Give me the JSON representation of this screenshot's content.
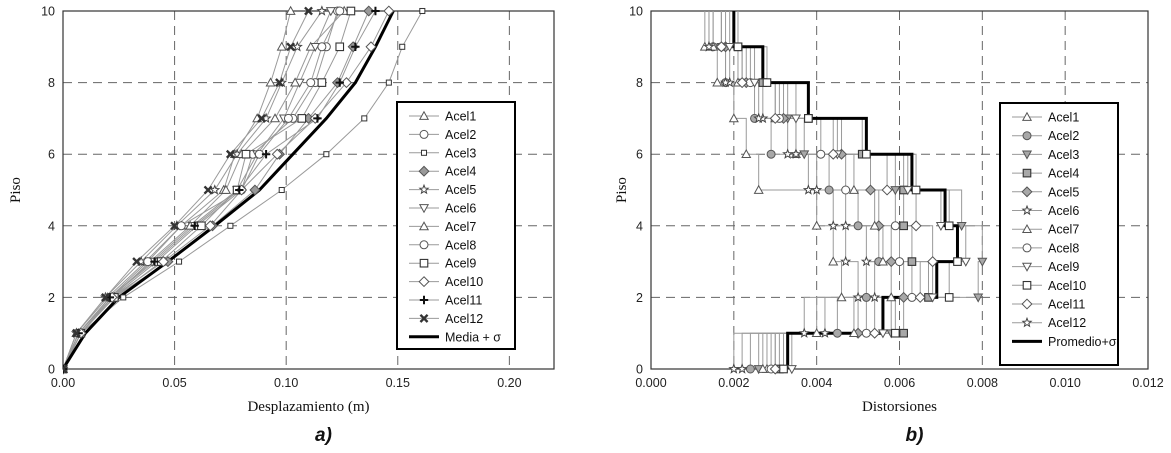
{
  "chart_data": [
    {
      "type": "line",
      "panel_label": "a)",
      "xlabel": "Desplazamiento (m)",
      "ylabel": "Piso",
      "xlim": [
        0,
        0.22
      ],
      "ylim": [
        0,
        10
      ],
      "xticks": [
        "0.00",
        "0.05",
        "0.10",
        "0.15",
        "0.20"
      ],
      "yticks": [
        "0",
        "2",
        "4",
        "6",
        "8",
        "10"
      ],
      "grid": true,
      "legend_position": "right",
      "floors": [
        0,
        1,
        2,
        3,
        4,
        5,
        6,
        7,
        8,
        9,
        10
      ],
      "series": [
        {
          "name": "Acel1",
          "marker": "triangle-up",
          "values": [
            0,
            0.006,
            0.02,
            0.037,
            0.053,
            0.072,
            0.077,
            0.087,
            0.093,
            0.098,
            0.102
          ]
        },
        {
          "name": "Acel2",
          "marker": "circle",
          "values": [
            0,
            0.008,
            0.022,
            0.042,
            0.06,
            0.08,
            0.085,
            0.103,
            0.113,
            0.118,
            0.123
          ]
        },
        {
          "name": "Acel3",
          "marker": "square-small",
          "values": [
            0,
            0.008,
            0.027,
            0.052,
            0.075,
            0.098,
            0.118,
            0.135,
            0.146,
            0.152,
            0.161
          ]
        },
        {
          "name": "Acel4",
          "marker": "diamond-dark",
          "values": [
            0,
            0.008,
            0.023,
            0.047,
            0.067,
            0.086,
            0.097,
            0.11,
            0.123,
            0.13,
            0.137
          ]
        },
        {
          "name": "Acel5",
          "marker": "star",
          "values": [
            0,
            0.006,
            0.019,
            0.035,
            0.051,
            0.068,
            0.078,
            0.091,
            0.098,
            0.105,
            0.116
          ]
        },
        {
          "name": "Acel6",
          "marker": "triangle-down",
          "values": [
            0,
            0.007,
            0.021,
            0.04,
            0.058,
            0.078,
            0.087,
            0.099,
            0.106,
            0.113,
            0.12
          ]
        },
        {
          "name": "Acel7",
          "marker": "triangle-up",
          "values": [
            0,
            0.007,
            0.022,
            0.039,
            0.057,
            0.073,
            0.08,
            0.095,
            0.104,
            0.111,
            0.126
          ]
        },
        {
          "name": "Acel8",
          "marker": "circle",
          "values": [
            0,
            0.007,
            0.021,
            0.038,
            0.053,
            0.08,
            0.088,
            0.101,
            0.111,
            0.116,
            0.124
          ]
        },
        {
          "name": "Acel9",
          "marker": "square",
          "values": [
            0,
            0.008,
            0.023,
            0.044,
            0.062,
            0.078,
            0.082,
            0.107,
            0.116,
            0.124,
            0.129
          ]
        },
        {
          "name": "Acel10",
          "marker": "diamond",
          "values": [
            0,
            0.008,
            0.022,
            0.045,
            0.066,
            0.08,
            0.096,
            0.113,
            0.127,
            0.138,
            0.146
          ]
        },
        {
          "name": "Acel11",
          "marker": "plus",
          "values": [
            0,
            0.007,
            0.021,
            0.041,
            0.059,
            0.079,
            0.091,
            0.114,
            0.124,
            0.131,
            0.14
          ]
        },
        {
          "name": "Acel12",
          "marker": "x",
          "values": [
            0,
            0.006,
            0.019,
            0.033,
            0.05,
            0.065,
            0.075,
            0.089,
            0.097,
            0.102,
            0.11
          ]
        },
        {
          "name": "Media + σ",
          "style": "thick",
          "values": [
            0,
            0.01,
            0.025,
            0.047,
            0.068,
            0.088,
            0.103,
            0.118,
            0.131,
            0.14,
            0.148
          ]
        }
      ]
    },
    {
      "type": "line",
      "panel_label": "b)",
      "xlabel": "Distorsiones",
      "ylabel": "Piso",
      "xlim": [
        0,
        0.012
      ],
      "ylim": [
        0,
        10
      ],
      "xticks": [
        "0.000",
        "0.002",
        "0.004",
        "0.006",
        "0.008",
        "0.010",
        "0.012"
      ],
      "yticks": [
        "0",
        "2",
        "4",
        "6",
        "8",
        "10"
      ],
      "grid": true,
      "legend_position": "right",
      "floors": [
        1,
        2,
        3,
        4,
        5,
        6,
        7,
        8,
        9,
        10
      ],
      "series": [
        {
          "name": "Acel1",
          "marker": "triangle-up",
          "values": [
            0.0028,
            0.004,
            0.0046,
            0.0044,
            0.004,
            0.0026,
            0.0023,
            0.002,
            0.0016,
            0.0013
          ]
        },
        {
          "name": "Acel2",
          "marker": "circle-gray",
          "values": [
            0.0024,
            0.0045,
            0.0052,
            0.0055,
            0.005,
            0.0043,
            0.0029,
            0.0025,
            0.0018,
            0.0015
          ]
        },
        {
          "name": "Acel3",
          "marker": "triangle-down-gray",
          "values": [
            0.0026,
            0.0058,
            0.0079,
            0.008,
            0.0075,
            0.0059,
            0.0037,
            0.0033,
            0.0022,
            0.0017
          ]
        },
        {
          "name": "Acel4",
          "marker": "square-gray",
          "values": [
            0.0031,
            0.0061,
            0.0067,
            0.0063,
            0.0061,
            0.0061,
            0.0051,
            0.0038,
            0.0027,
            0.0021
          ]
        },
        {
          "name": "Acel5",
          "marker": "diamond-gray",
          "values": [
            0.003,
            0.005,
            0.0061,
            0.0058,
            0.0055,
            0.0053,
            0.0046,
            0.0032,
            0.0023,
            0.0018
          ]
        },
        {
          "name": "Acel6",
          "marker": "star",
          "values": [
            0.0022,
            0.0042,
            0.005,
            0.0047,
            0.0044,
            0.0038,
            0.0033,
            0.0027,
            0.0019,
            0.0014
          ]
        },
        {
          "name": "Acel7",
          "marker": "triangle-up",
          "values": [
            0.0027,
            0.0049,
            0.0058,
            0.0056,
            0.0054,
            0.0049,
            0.0035,
            0.003,
            0.0021,
            0.0015
          ]
        },
        {
          "name": "Acel8",
          "marker": "circle",
          "values": [
            0.0029,
            0.0052,
            0.0063,
            0.006,
            0.0059,
            0.0047,
            0.0041,
            0.0031,
            0.0024,
            0.0017
          ]
        },
        {
          "name": "Acel9",
          "marker": "triangle-down",
          "values": [
            0.0034,
            0.0056,
            0.0068,
            0.0076,
            0.007,
            0.0062,
            0.0045,
            0.0035,
            0.0025,
            0.0019
          ]
        },
        {
          "name": "Acel10",
          "marker": "square",
          "values": [
            0.0032,
            0.0059,
            0.0072,
            0.0074,
            0.0072,
            0.0064,
            0.0052,
            0.0038,
            0.0028,
            0.0021
          ]
        },
        {
          "name": "Acel11",
          "marker": "diamond",
          "values": [
            0.003,
            0.0054,
            0.0065,
            0.0068,
            0.0064,
            0.0057,
            0.0044,
            0.003,
            0.0022,
            0.0017
          ]
        },
        {
          "name": "Acel12",
          "marker": "star",
          "values": [
            0.002,
            0.0037,
            0.0054,
            0.0052,
            0.0047,
            0.004,
            0.0035,
            0.0026,
            0.0018,
            0.0014
          ]
        },
        {
          "name": "Promedio+σ",
          "style": "thick-step",
          "values": [
            0.0033,
            0.0056,
            0.0069,
            0.0074,
            0.0071,
            0.0063,
            0.0052,
            0.0038,
            0.0027,
            0.002
          ]
        }
      ]
    }
  ]
}
